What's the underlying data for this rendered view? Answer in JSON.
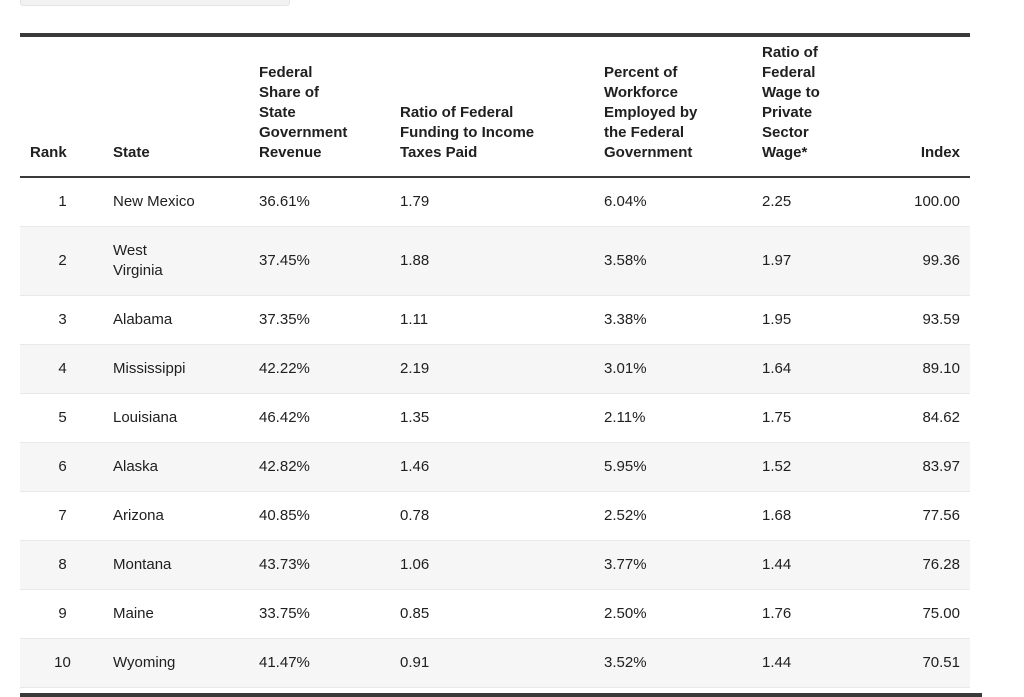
{
  "colors": {
    "border_dark": "#3a3a3a",
    "zebra_row": "#f6f6f6",
    "text": "#202020",
    "row_divider": "#e9e9e9"
  },
  "chart_data": {
    "type": "table",
    "legend_position": "none",
    "columns": [
      {
        "id": "rank",
        "label": "Rank"
      },
      {
        "id": "state",
        "label": "State"
      },
      {
        "id": "fed_share",
        "label": "Federal\nShare of\nState\nGovernment\nRevenue"
      },
      {
        "id": "ratio_funding",
        "label": "Ratio of Federal\nFunding to Income\nTaxes Paid"
      },
      {
        "id": "pct_workforce",
        "label": "Percent of\nWorkforce\nEmployed by\nthe Federal\nGovernment"
      },
      {
        "id": "ratio_wage",
        "label": "Ratio of\nFederal\nWage to\nPrivate\nSector\nWage*"
      },
      {
        "id": "index",
        "label": "Index"
      }
    ],
    "rows": [
      {
        "rank": "1",
        "state": "New Mexico",
        "fed_share": "36.61%",
        "ratio_funding": "1.79",
        "pct_workforce": "6.04%",
        "ratio_wage": "2.25",
        "index": "100.00"
      },
      {
        "rank": "2",
        "state": "West\nVirginia",
        "fed_share": "37.45%",
        "ratio_funding": "1.88",
        "pct_workforce": "3.58%",
        "ratio_wage": "1.97",
        "index": "99.36"
      },
      {
        "rank": "3",
        "state": "Alabama",
        "fed_share": "37.35%",
        "ratio_funding": "1.11",
        "pct_workforce": "3.38%",
        "ratio_wage": "1.95",
        "index": "93.59"
      },
      {
        "rank": "4",
        "state": "Mississippi",
        "fed_share": "42.22%",
        "ratio_funding": "2.19",
        "pct_workforce": "3.01%",
        "ratio_wage": "1.64",
        "index": "89.10"
      },
      {
        "rank": "5",
        "state": "Louisiana",
        "fed_share": "46.42%",
        "ratio_funding": "1.35",
        "pct_workforce": "2.11%",
        "ratio_wage": "1.75",
        "index": "84.62"
      },
      {
        "rank": "6",
        "state": "Alaska",
        "fed_share": "42.82%",
        "ratio_funding": "1.46",
        "pct_workforce": "5.95%",
        "ratio_wage": "1.52",
        "index": "83.97"
      },
      {
        "rank": "7",
        "state": "Arizona",
        "fed_share": "40.85%",
        "ratio_funding": "0.78",
        "pct_workforce": "2.52%",
        "ratio_wage": "1.68",
        "index": "77.56"
      },
      {
        "rank": "8",
        "state": "Montana",
        "fed_share": "43.73%",
        "ratio_funding": "1.06",
        "pct_workforce": "3.77%",
        "ratio_wage": "1.44",
        "index": "76.28"
      },
      {
        "rank": "9",
        "state": "Maine",
        "fed_share": "33.75%",
        "ratio_funding": "0.85",
        "pct_workforce": "2.50%",
        "ratio_wage": "1.76",
        "index": "75.00"
      },
      {
        "rank": "10",
        "state": "Wyoming",
        "fed_share": "41.47%",
        "ratio_funding": "0.91",
        "pct_workforce": "3.52%",
        "ratio_wage": "1.44",
        "index": "70.51"
      }
    ]
  }
}
